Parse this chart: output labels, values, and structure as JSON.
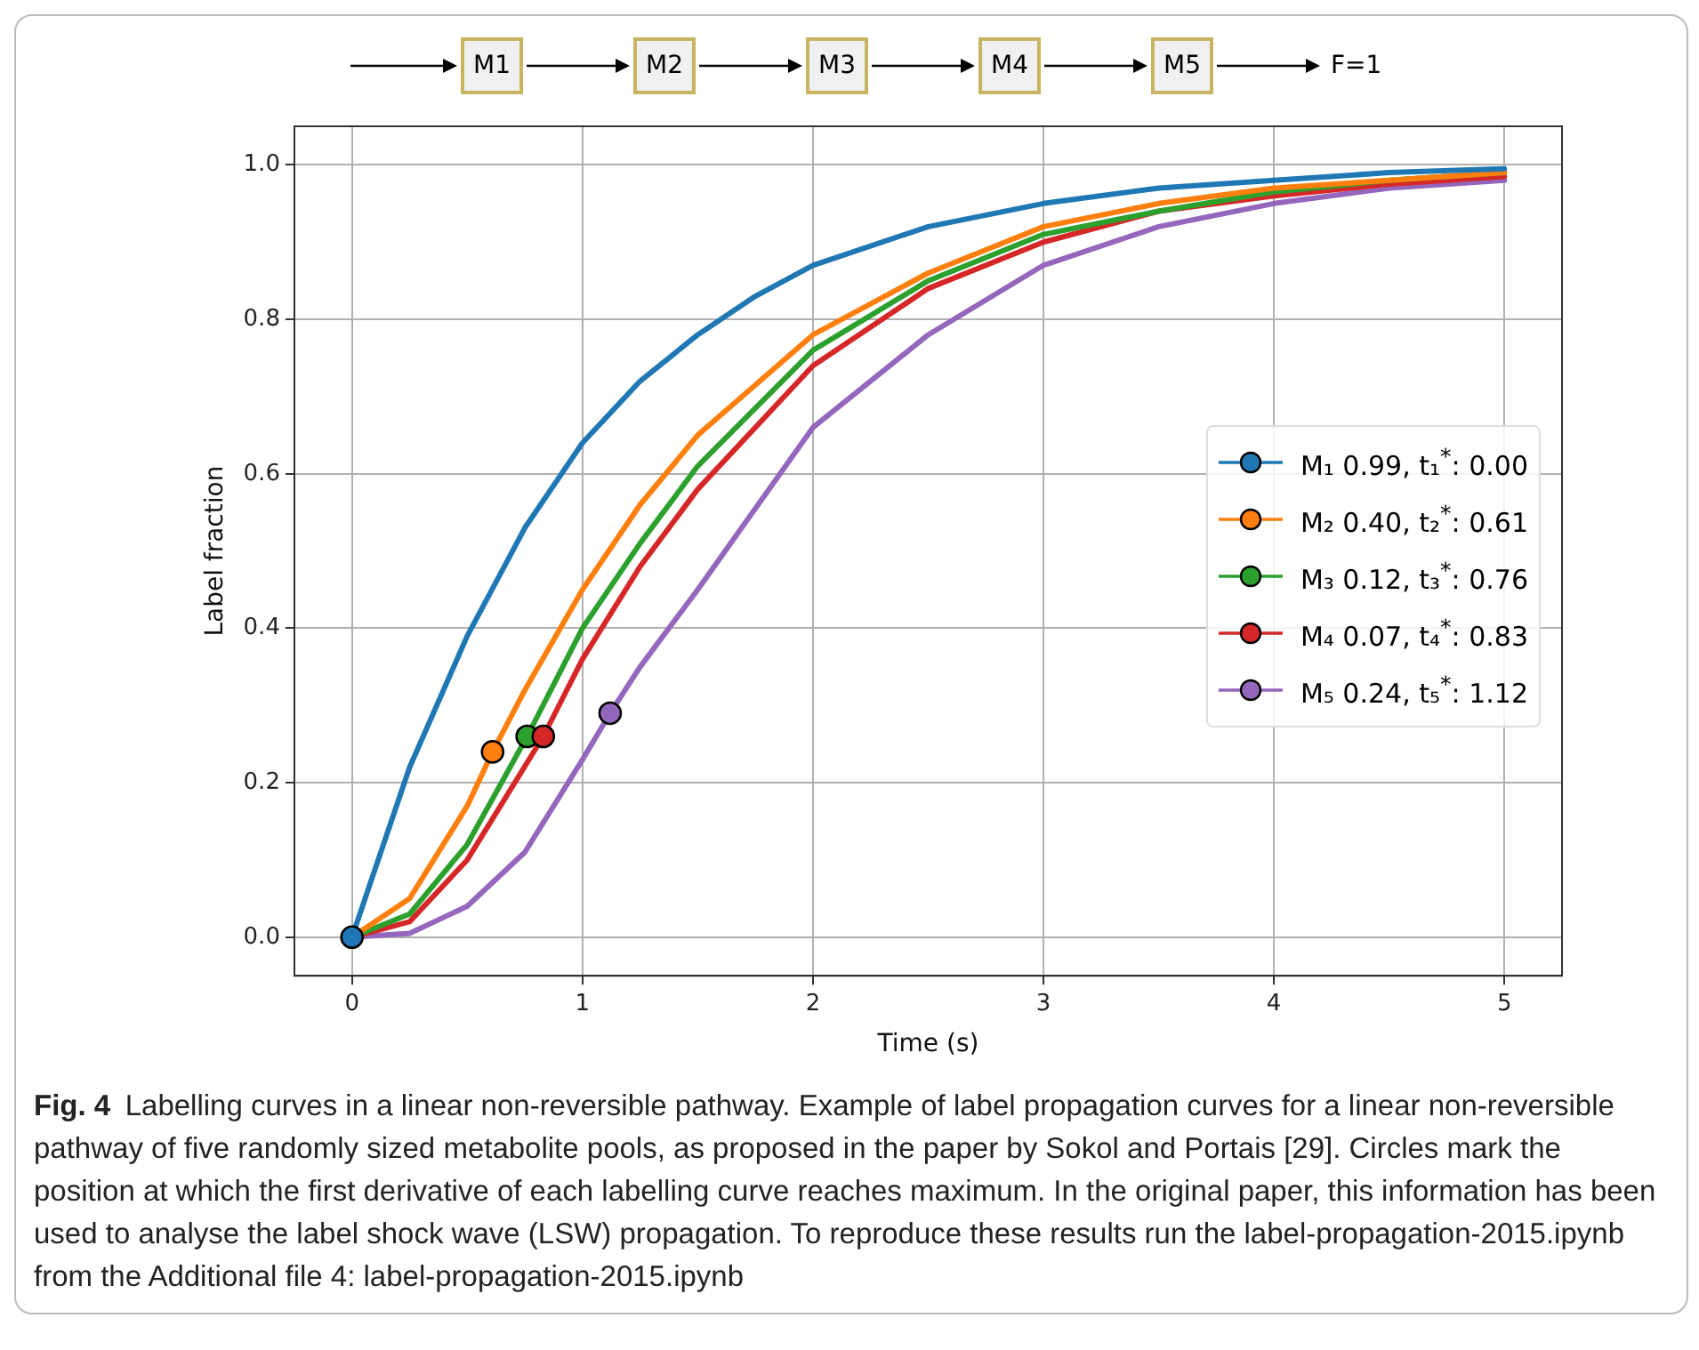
{
  "chart_data": {
    "type": "line",
    "xlabel": "Time (s)",
    "ylabel": "Label fraction",
    "xlim": [
      -0.25,
      5.25
    ],
    "xticks": [
      0,
      1,
      2,
      3,
      4,
      5
    ],
    "ylim": [
      -0.05,
      1.05
    ],
    "yticks": [
      {
        "value": 0,
        "label": "0.0"
      },
      {
        "value": 0.2,
        "label": "0.2"
      },
      {
        "value": 0.4,
        "label": "0.4"
      },
      {
        "value": 0.6,
        "label": "0.6"
      },
      {
        "value": 0.8,
        "label": "0.8"
      },
      {
        "value": 1,
        "label": "1.0"
      }
    ],
    "grid": true,
    "legend": "right",
    "marker": "none",
    "line_style": "solid",
    "series": [
      {
        "name": "M₁ 0.99, t₁$^{*}$: 0.00",
        "color": "#1f77b4",
        "x": [
          0,
          0.25,
          0.5,
          0.75,
          1,
          1.25,
          1.5,
          1.75,
          2,
          2.5,
          3,
          3.5,
          4,
          4.5,
          5
        ],
        "values": [
          0,
          0.22,
          0.39,
          0.53,
          0.64,
          0.72,
          0.78,
          0.83,
          0.87,
          0.92,
          0.95,
          0.97,
          0.98,
          0.99,
          0.995
        ]
      },
      {
        "name": "M₂ 0.40, t₂$^{*}$: 0.61",
        "color": "#ff7f0e",
        "x": [
          0,
          0.25,
          0.5,
          0.61,
          0.75,
          1,
          1.25,
          1.5,
          2,
          2.5,
          3,
          3.5,
          4,
          4.5,
          5
        ],
        "values": [
          0,
          0.05,
          0.17,
          0.24,
          0.32,
          0.45,
          0.56,
          0.65,
          0.78,
          0.86,
          0.92,
          0.95,
          0.97,
          0.98,
          0.99
        ]
      },
      {
        "name": "M₃ 0.12, t₃$^{*}$: 0.76",
        "color": "#2ca02c",
        "x": [
          0,
          0.25,
          0.5,
          0.76,
          1,
          1.25,
          1.5,
          2,
          2.5,
          3,
          3.5,
          4,
          4.5,
          5
        ],
        "values": [
          0,
          0.03,
          0.12,
          0.26,
          0.4,
          0.51,
          0.61,
          0.76,
          0.85,
          0.91,
          0.94,
          0.965,
          0.98,
          0.99
        ]
      },
      {
        "name": "M₄ 0.07, t₄$^{*}$: 0.83",
        "color": "#d62728",
        "x": [
          0,
          0.25,
          0.5,
          0.83,
          1,
          1.25,
          1.5,
          2,
          2.5,
          3,
          3.5,
          4,
          4.5,
          5
        ],
        "values": [
          0,
          0.02,
          0.1,
          0.26,
          0.36,
          0.48,
          0.58,
          0.74,
          0.84,
          0.9,
          0.94,
          0.96,
          0.975,
          0.985
        ]
      },
      {
        "name": "M₅ 0.24, t₅$^{*}$: 1.12",
        "color": "#9467bd",
        "x": [
          0,
          0.25,
          0.5,
          0.75,
          1,
          1.12,
          1.25,
          1.5,
          2,
          2.5,
          3,
          3.5,
          4,
          4.5,
          5
        ],
        "values": [
          0,
          0.005,
          0.04,
          0.11,
          0.23,
          0.29,
          0.35,
          0.45,
          0.66,
          0.78,
          0.87,
          0.92,
          0.95,
          0.97,
          0.98
        ]
      },
      {
        "type": "scatter",
        "marker": "circle",
        "x": [
          0,
          0.61,
          0.76,
          0.83,
          1.12
        ],
        "values": [
          0,
          0.24,
          0.26,
          0.26,
          0.29
        ],
        "colors": [
          "#1f77b4",
          "#ff7f0e",
          "#2ca02c",
          "#d62728",
          "#9467bd"
        ]
      }
    ],
    "annotations": [
      "M1",
      "M2",
      "M3",
      "M4",
      "M5",
      "F=1",
      "Fig. 4",
      "Labelling curves in a linear non-reversible pathway. Example of label propagation curves for a linear non-reversible pathway of five randomly sized metabolite pools, as proposed in the paper by Sokol and Portais [29]. Circles mark the position at which the first derivative of each labelling curve reaches maximum. In the original paper, this information has been used to analyse the label shock wave (LSW) propagation. To reproduce these results run the label-propagation-2015.ipynb from the Additional file 4: label-propagation-2015.ipynb"
    ]
  }
}
